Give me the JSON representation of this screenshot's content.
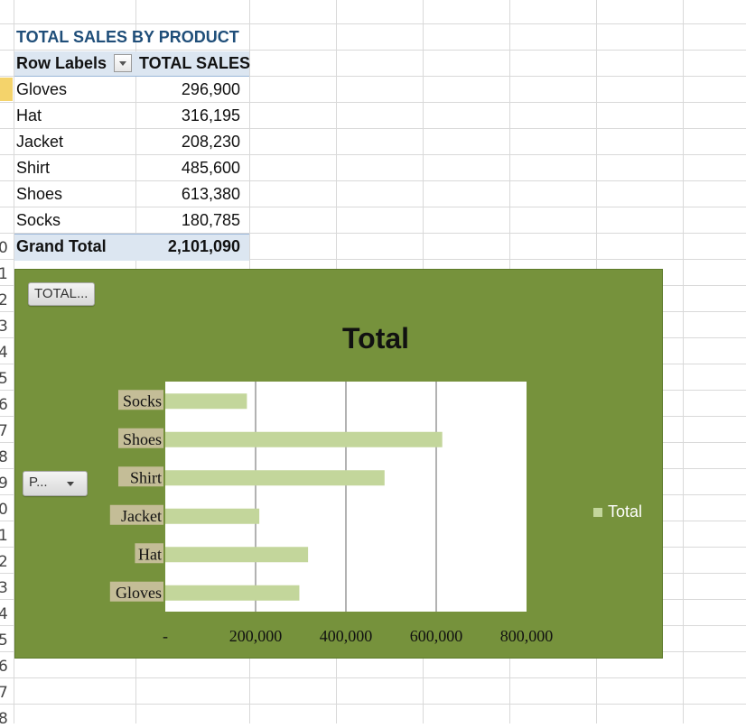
{
  "pivot": {
    "title": "TOTAL SALES BY PRODUCT",
    "header_row_labels": "Row Labels",
    "header_total": "TOTAL SALES",
    "rows": [
      {
        "label": "Gloves",
        "value": "296,900"
      },
      {
        "label": "Hat",
        "value": "316,195"
      },
      {
        "label": "Jacket",
        "value": "208,230"
      },
      {
        "label": "Shirt",
        "value": "485,600"
      },
      {
        "label": "Shoes",
        "value": "613,380"
      },
      {
        "label": "Socks",
        "value": "180,785"
      }
    ],
    "grand_total_label": "Grand Total",
    "grand_total_value": "2,101,090"
  },
  "row_numbers": [
    "0",
    "1",
    "2",
    "3",
    "4",
    "5",
    "6",
    "7",
    "8",
    "9",
    "0",
    "1",
    "2",
    "3",
    "4",
    "5",
    "6",
    "7",
    "8"
  ],
  "chart": {
    "value_field_button": "TOTAL...",
    "axis_field_button": "P...",
    "legend_label": "Total",
    "colors": {
      "background": "#76923c",
      "bar": "#c3d69b",
      "plot": "#ffffff"
    }
  },
  "chart_data": {
    "type": "bar",
    "orientation": "horizontal",
    "title": "Total",
    "categories": [
      "Socks",
      "Shoes",
      "Shirt",
      "Jacket",
      "Hat",
      "Gloves"
    ],
    "series": [
      {
        "name": "Total",
        "values": [
          180785,
          613380,
          485600,
          208230,
          316195,
          296900
        ]
      }
    ],
    "xlim": [
      0,
      800000
    ],
    "x_ticks": [
      "-",
      "200,000",
      "400,000",
      "600,000",
      "800,000"
    ],
    "grid": true,
    "legend": "right"
  }
}
